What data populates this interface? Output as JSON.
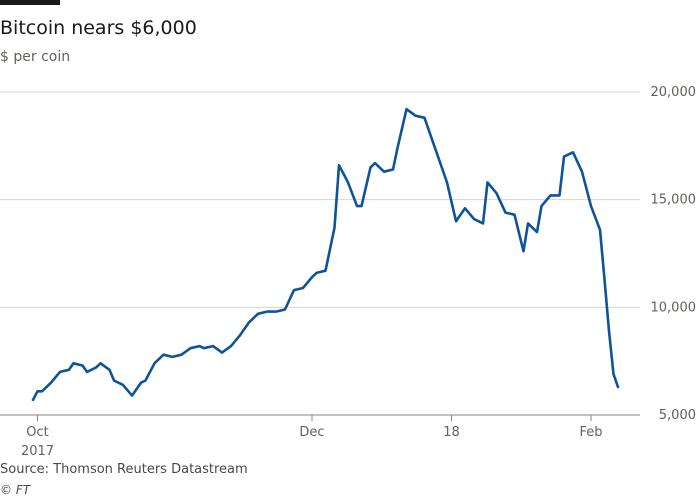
{
  "chart_data": {
    "type": "line",
    "title": "Bitcoin nears $6,000",
    "subtitle": "$ per coin",
    "ylabel": "",
    "xlabel": "",
    "ylim": [
      5000,
      20000
    ],
    "xlim": [
      "2017-09-30",
      "2018-02-07"
    ],
    "y_ticks": [
      5000,
      10000,
      15000,
      20000
    ],
    "y_tick_labels": [
      "5,000",
      "10,000",
      "15,000",
      "20,000"
    ],
    "x_ticks": [
      {
        "date": "2017-10-01",
        "label": "Oct",
        "sublabel": "2017"
      },
      {
        "date": "2017-12-01",
        "label": "Dec",
        "sublabel": ""
      },
      {
        "date": "2018-01-01",
        "label": "18",
        "sublabel": ""
      },
      {
        "date": "2018-02-01",
        "label": "Feb",
        "sublabel": ""
      }
    ],
    "grid": true,
    "series": [
      {
        "color": "#0f5499",
        "points": [
          {
            "x": "2017-09-30",
            "y": 5700
          },
          {
            "x": "2017-10-01",
            "y": 6100
          },
          {
            "x": "2017-10-02",
            "y": 6100
          },
          {
            "x": "2017-10-04",
            "y": 6500
          },
          {
            "x": "2017-10-06",
            "y": 7000
          },
          {
            "x": "2017-10-08",
            "y": 7100
          },
          {
            "x": "2017-10-09",
            "y": 7400
          },
          {
            "x": "2017-10-11",
            "y": 7300
          },
          {
            "x": "2017-10-12",
            "y": 7000
          },
          {
            "x": "2017-10-14",
            "y": 7200
          },
          {
            "x": "2017-10-15",
            "y": 7400
          },
          {
            "x": "2017-10-17",
            "y": 7100
          },
          {
            "x": "2017-10-18",
            "y": 6600
          },
          {
            "x": "2017-10-20",
            "y": 6400
          },
          {
            "x": "2017-10-22",
            "y": 5900
          },
          {
            "x": "2017-10-24",
            "y": 6500
          },
          {
            "x": "2017-10-25",
            "y": 6600
          },
          {
            "x": "2017-10-27",
            "y": 7400
          },
          {
            "x": "2017-10-29",
            "y": 7800
          },
          {
            "x": "2017-10-31",
            "y": 7700
          },
          {
            "x": "2017-11-02",
            "y": 7800
          },
          {
            "x": "2017-11-04",
            "y": 8100
          },
          {
            "x": "2017-11-06",
            "y": 8200
          },
          {
            "x": "2017-11-07",
            "y": 8100
          },
          {
            "x": "2017-11-09",
            "y": 8200
          },
          {
            "x": "2017-11-11",
            "y": 7900
          },
          {
            "x": "2017-11-13",
            "y": 8200
          },
          {
            "x": "2017-11-15",
            "y": 8700
          },
          {
            "x": "2017-11-17",
            "y": 9300
          },
          {
            "x": "2017-11-19",
            "y": 9700
          },
          {
            "x": "2017-11-21",
            "y": 9800
          },
          {
            "x": "2017-11-23",
            "y": 9800
          },
          {
            "x": "2017-11-25",
            "y": 9900
          },
          {
            "x": "2017-11-27",
            "y": 10800
          },
          {
            "x": "2017-11-29",
            "y": 10900
          },
          {
            "x": "2017-12-01",
            "y": 11400
          },
          {
            "x": "2017-12-02",
            "y": 11600
          },
          {
            "x": "2017-12-04",
            "y": 11700
          },
          {
            "x": "2017-12-06",
            "y": 13700
          },
          {
            "x": "2017-12-07",
            "y": 16600
          },
          {
            "x": "2017-12-09",
            "y": 15800
          },
          {
            "x": "2017-12-11",
            "y": 14700
          },
          {
            "x": "2017-12-12",
            "y": 14700
          },
          {
            "x": "2017-12-14",
            "y": 16500
          },
          {
            "x": "2017-12-15",
            "y": 16700
          },
          {
            "x": "2017-12-17",
            "y": 16300
          },
          {
            "x": "2017-12-19",
            "y": 16400
          },
          {
            "x": "2017-12-20",
            "y": 17400
          },
          {
            "x": "2017-12-22",
            "y": 19200
          },
          {
            "x": "2017-12-24",
            "y": 18900
          },
          {
            "x": "2017-12-26",
            "y": 18800
          },
          {
            "x": "2017-12-28",
            "y": 17600
          },
          {
            "x": "2017-12-30",
            "y": 16400
          },
          {
            "x": "2017-12-31",
            "y": 15800
          },
          {
            "x": "2018-01-02",
            "y": 14000
          },
          {
            "x": "2018-01-04",
            "y": 14600
          },
          {
            "x": "2018-01-06",
            "y": 14100
          },
          {
            "x": "2018-01-08",
            "y": 13900
          },
          {
            "x": "2018-01-09",
            "y": 15800
          },
          {
            "x": "2018-01-11",
            "y": 15300
          },
          {
            "x": "2018-01-13",
            "y": 14400
          },
          {
            "x": "2018-01-15",
            "y": 14300
          },
          {
            "x": "2018-01-17",
            "y": 12600
          },
          {
            "x": "2018-01-18",
            "y": 13900
          },
          {
            "x": "2018-01-20",
            "y": 13500
          },
          {
            "x": "2018-01-21",
            "y": 14700
          },
          {
            "x": "2018-01-23",
            "y": 15200
          },
          {
            "x": "2018-01-25",
            "y": 15200
          },
          {
            "x": "2018-01-26",
            "y": 17000
          },
          {
            "x": "2018-01-28",
            "y": 17200
          },
          {
            "x": "2018-01-30",
            "y": 16300
          },
          {
            "x": "2018-02-01",
            "y": 14700
          },
          {
            "x": "2018-02-03",
            "y": 13600
          },
          {
            "x": "2018-02-04",
            "y": 11300
          },
          {
            "x": "2018-02-05",
            "y": 8900
          },
          {
            "x": "2018-02-06",
            "y": 6900
          },
          {
            "x": "2018-02-07",
            "y": 6300
          }
        ]
      }
    ]
  },
  "footer": {
    "source": "Source: Thomson Reuters Datastream",
    "credit": "© FT"
  },
  "colors": {
    "series": "#0f5499",
    "grid": "#d9d4cf",
    "text": "#66605c"
  }
}
